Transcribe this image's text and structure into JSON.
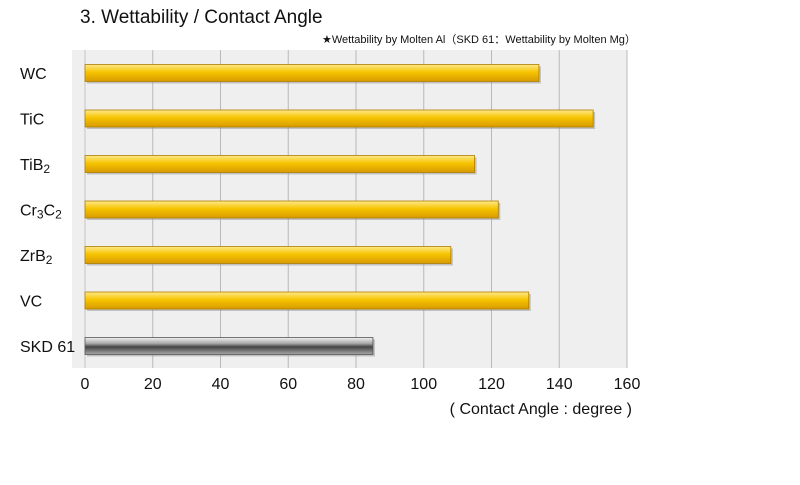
{
  "title": "3. Wettability / Contact Angle",
  "note": "★Wettability by Molten Al（SKD 61：Wettability by Molten Mg）",
  "chart_data": {
    "type": "bar",
    "orientation": "horizontal",
    "categories": [
      {
        "base": "WC",
        "sub1": "",
        "mid": "",
        "sub2": ""
      },
      {
        "base": "TiC",
        "sub1": "",
        "mid": "",
        "sub2": ""
      },
      {
        "base": "TiB",
        "sub1": "2",
        "mid": "",
        "sub2": ""
      },
      {
        "base": "Cr",
        "sub1": "3",
        "mid": "C",
        "sub2": "2"
      },
      {
        "base": "ZrB",
        "sub1": "2",
        "mid": "",
        "sub2": ""
      },
      {
        "base": "VC",
        "sub1": "",
        "mid": "",
        "sub2": ""
      },
      {
        "base": "SKD 61",
        "sub1": "",
        "mid": "",
        "sub2": ""
      }
    ],
    "values": [
      134,
      150,
      115,
      122,
      108,
      131,
      85
    ],
    "bar_colors": [
      "gold",
      "gold",
      "gold",
      "gold",
      "gold",
      "gold",
      "silver"
    ],
    "xlim": [
      0,
      160
    ],
    "xticks": [
      "0",
      "20",
      "40",
      "60",
      "80",
      "100",
      "120",
      "140",
      "160"
    ],
    "xlabel": "( Contact Angle : degree )",
    "ylabel": "",
    "grid": true,
    "colors": {
      "gold_light": "#ffe98a",
      "gold_mid": "#f6c400",
      "gold_dark": "#d89a00",
      "silver_light": "#f2f2f2",
      "silver_mid": "#a8a8a8",
      "silver_dark": "#444444",
      "plot_bg": "#efefef",
      "grid": "#b8b8b8"
    }
  }
}
